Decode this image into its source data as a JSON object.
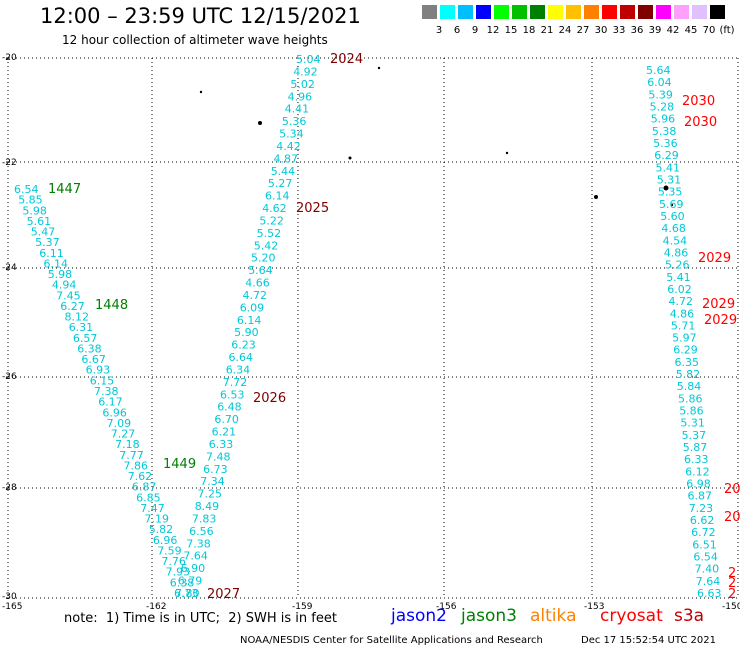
{
  "header": {
    "title": "12:00 – 23:59 UTC 12/15/2021",
    "subtitle": "12 hour collection of altimeter wave heights"
  },
  "legend": {
    "colors": [
      "#808080",
      "#00ffff",
      "#00bfff",
      "#0000ff",
      "#00ff00",
      "#00c000",
      "#008000",
      "#ffff00",
      "#ffc000",
      "#ff8000",
      "#ff0000",
      "#c00000",
      "#800000",
      "#ff00ff",
      "#ffa0ff",
      "#e0c0ff",
      "#000000"
    ],
    "labels": [
      "3",
      "6",
      "9",
      "12",
      "15",
      "18",
      "21",
      "24",
      "27",
      "30",
      "33",
      "36",
      "39",
      "42",
      "45",
      "70",
      "(ft)"
    ]
  },
  "axes": {
    "y_ticks": [
      "-20",
      "-22",
      "-24",
      "-26",
      "-28",
      "-30"
    ],
    "x_ticks": [
      "-165",
      "-162",
      "-159",
      "-156",
      "-153",
      "-150"
    ]
  },
  "tracks": {
    "a": [
      "5.04",
      "4.92",
      "5.02",
      "4.96",
      "4.41",
      "5.36",
      "5.34",
      "4.42",
      "4.87",
      "5.44",
      "5.27",
      "6.14",
      "4.62",
      "5.22",
      "5.52",
      "5.42",
      "5.20",
      "5.64",
      "4.66",
      "4.72",
      "6.09",
      "6.14",
      "5.90",
      "6.23",
      "6.64",
      "6.34",
      "7.72",
      "6.53",
      "6.48",
      "6.70",
      "6.21",
      "6.33",
      "7.48",
      "6.73",
      "7.34",
      "7.25",
      "8.49",
      "7.83",
      "6.56",
      "7.38",
      "7.64",
      "6.90",
      "6.79",
      "7.80"
    ],
    "b": [
      "6.54",
      "5.85",
      "5.98",
      "5.61",
      "5.47",
      "5.37",
      "6.11",
      "6.14",
      "5.98",
      "4.94",
      "7.45",
      "6.27",
      "8.12",
      "6.31",
      "6.57",
      "6.38",
      "6.67",
      "6.93",
      "6.15",
      "7.38",
      "6.17",
      "6.96",
      "7.09",
      "7.27",
      "7.18",
      "7.77",
      "7.86",
      "7.62",
      "6.87",
      "6.85",
      "7.47",
      "7.19",
      "5.82",
      "6.96",
      "7.59",
      "7.76",
      "7.93",
      "6.38",
      "6.73"
    ],
    "c": [
      "5.64",
      "6.04",
      "5.39",
      "5.28",
      "5.96",
      "5.38",
      "5.36",
      "6.29",
      "5.41",
      "5.31",
      "5.35",
      "5.69",
      "5.60",
      "4.68",
      "4.54",
      "4.86",
      "5.26",
      "5.41",
      "6.02",
      "4.72",
      "4.86",
      "5.71",
      "5.97",
      "6.29",
      "6.35",
      "5.82",
      "5.84",
      "5.86",
      "5.86",
      "5.31",
      "5.37",
      "5.87",
      "6.33",
      "6.12",
      "6.98",
      "6.87",
      "7.23",
      "6.62",
      "6.72",
      "6.51",
      "6.54",
      "7.40",
      "7.64",
      "6.63"
    ]
  },
  "time_labels": {
    "t2024": "2024",
    "t2025": "2025",
    "t2026": "2026",
    "t2027": "2027",
    "t1447": "1447",
    "t1448": "1448",
    "t1449": "1449",
    "t2030a": "2030",
    "t2030b": "2030",
    "t2029a": "2029",
    "t2029b": "2029",
    "t2029c": "2029",
    "t20a": "20",
    "t20b": "20",
    "t2a": "2",
    "t2b": "2",
    "t2c": "2"
  },
  "footer": {
    "note": "note:  1) Time is in UTC;  2) SWH is in feet",
    "sats": [
      "jason2",
      "jason3",
      "altika",
      "cryosat",
      "s3a"
    ],
    "sat_colors": [
      "#0000ff",
      "#008000",
      "#ff8000",
      "#ff0000",
      "#c00000"
    ],
    "credit": "NOAA/NESDIS Center for Satellite Applications and Research",
    "stamp": "Dec 17 15:52:54 UTC 2021"
  }
}
